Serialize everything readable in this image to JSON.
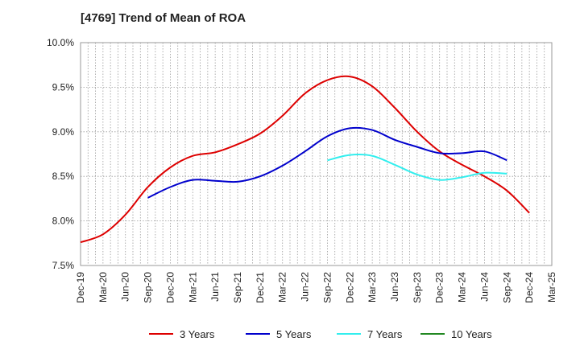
{
  "chart_data": {
    "type": "line",
    "title": "[4769]  Trend of Mean of ROA",
    "xlabel": "",
    "ylabel": "",
    "ylim": [
      7.5,
      10.0
    ],
    "y_ticks": [
      "7.5%",
      "8.0%",
      "8.5%",
      "9.0%",
      "9.5%",
      "10.0%"
    ],
    "y_tick_values": [
      7.5,
      8.0,
      8.5,
      9.0,
      9.5,
      10.0
    ],
    "x_ticks": [
      "Dec-19",
      "Mar-20",
      "Jun-20",
      "Sep-20",
      "Dec-20",
      "Mar-21",
      "Jun-21",
      "Sep-21",
      "Dec-21",
      "Mar-22",
      "Jun-22",
      "Sep-22",
      "Dec-22",
      "Mar-23",
      "Jun-23",
      "Sep-23",
      "Dec-23",
      "Mar-24",
      "Jun-24",
      "Sep-24",
      "Dec-24",
      "Mar-25"
    ],
    "grid": true,
    "legend_position": "bottom",
    "series": [
      {
        "name": "3 Years",
        "color": "#dd0000",
        "start_index": 0,
        "values": [
          7.76,
          7.85,
          8.07,
          8.38,
          8.6,
          8.73,
          8.77,
          8.86,
          8.98,
          9.18,
          9.43,
          9.58,
          9.62,
          9.51,
          9.27,
          9.0,
          8.78,
          8.63,
          8.5,
          8.34,
          8.09
        ]
      },
      {
        "name": "5 Years",
        "color": "#0000cc",
        "start_index": 3,
        "values": [
          8.26,
          8.38,
          8.46,
          8.45,
          8.44,
          8.5,
          8.62,
          8.78,
          8.95,
          9.04,
          9.02,
          8.91,
          8.83,
          8.76,
          8.76,
          8.78,
          8.68
        ]
      },
      {
        "name": "7 Years",
        "color": "#33eeee",
        "start_index": 11,
        "values": [
          8.68,
          8.74,
          8.73,
          8.63,
          8.52,
          8.46,
          8.49,
          8.54,
          8.53
        ]
      },
      {
        "name": "10 Years",
        "color": "#228822",
        "start_index": 0,
        "values": []
      }
    ]
  }
}
